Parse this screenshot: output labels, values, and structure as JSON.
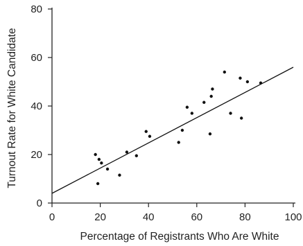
{
  "chart_data": {
    "type": "scatter",
    "title": "",
    "xlabel": "Percentage of Registrants Who Are White",
    "ylabel": "Turnout Rate for White Candidate",
    "xlim": [
      0,
      100
    ],
    "ylim": [
      0,
      80
    ],
    "x_ticks": [
      0,
      20,
      40,
      60,
      80,
      100
    ],
    "y_ticks": [
      0,
      20,
      40,
      60,
      80
    ],
    "grid": false,
    "colors": {
      "points": "#111111",
      "line": "#111111",
      "axis": "#222222"
    },
    "series": [
      {
        "points": [
          {
            "x": 18,
            "y": 20
          },
          {
            "x": 19,
            "y": 8
          },
          {
            "x": 19.5,
            "y": 18
          },
          {
            "x": 20.5,
            "y": 16.5
          },
          {
            "x": 23,
            "y": 14
          },
          {
            "x": 28,
            "y": 11.5
          },
          {
            "x": 31,
            "y": 21
          },
          {
            "x": 35,
            "y": 19.5
          },
          {
            "x": 39,
            "y": 29.5
          },
          {
            "x": 40.5,
            "y": 27.5
          },
          {
            "x": 52.5,
            "y": 25
          },
          {
            "x": 54,
            "y": 30
          },
          {
            "x": 56,
            "y": 39.5
          },
          {
            "x": 58,
            "y": 37
          },
          {
            "x": 63,
            "y": 41.5
          },
          {
            "x": 65.5,
            "y": 28.5
          },
          {
            "x": 66,
            "y": 44
          },
          {
            "x": 66.5,
            "y": 47
          },
          {
            "x": 71.5,
            "y": 54
          },
          {
            "x": 74,
            "y": 37
          },
          {
            "x": 78,
            "y": 51.5
          },
          {
            "x": 78.5,
            "y": 35
          },
          {
            "x": 81,
            "y": 50
          },
          {
            "x": 86.5,
            "y": 49.5
          }
        ]
      }
    ],
    "regression_line": {
      "x": [
        0,
        100
      ],
      "y": [
        4,
        56
      ]
    }
  }
}
